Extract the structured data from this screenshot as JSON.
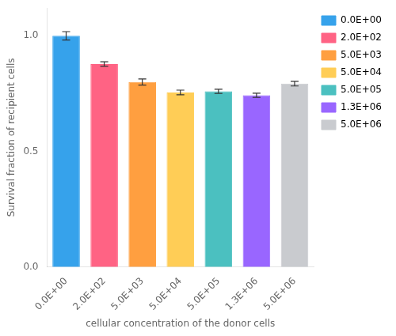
{
  "chart_data": {
    "type": "bar",
    "categories": [
      "0.0E+00",
      "2.0E+02",
      "5.0E+03",
      "5.0E+04",
      "5.0E+05",
      "1.3E+06",
      "5.0E+06"
    ],
    "values": [
      1.0,
      0.878,
      0.8,
      0.755,
      0.76,
      0.743,
      0.793
    ],
    "errors": [
      0.018,
      0.01,
      0.013,
      0.01,
      0.009,
      0.009,
      0.01
    ],
    "colors": [
      "#36a2eb",
      "#ff6384",
      "#ff9f40",
      "#ffcd56",
      "#4bc0c0",
      "#9966ff",
      "#c9cbcf"
    ],
    "xlabel": "cellular concentration of the donor cells",
    "ylabel": "Survival fraction of recipient cells",
    "ylim": [
      0.0,
      1.12
    ],
    "yticks": [
      {
        "value": 0.0,
        "label": "0.0"
      },
      0.5,
      {
        "value": 1.0,
        "label": "1.0"
      }
    ],
    "grid": false,
    "legend": "upper right"
  }
}
